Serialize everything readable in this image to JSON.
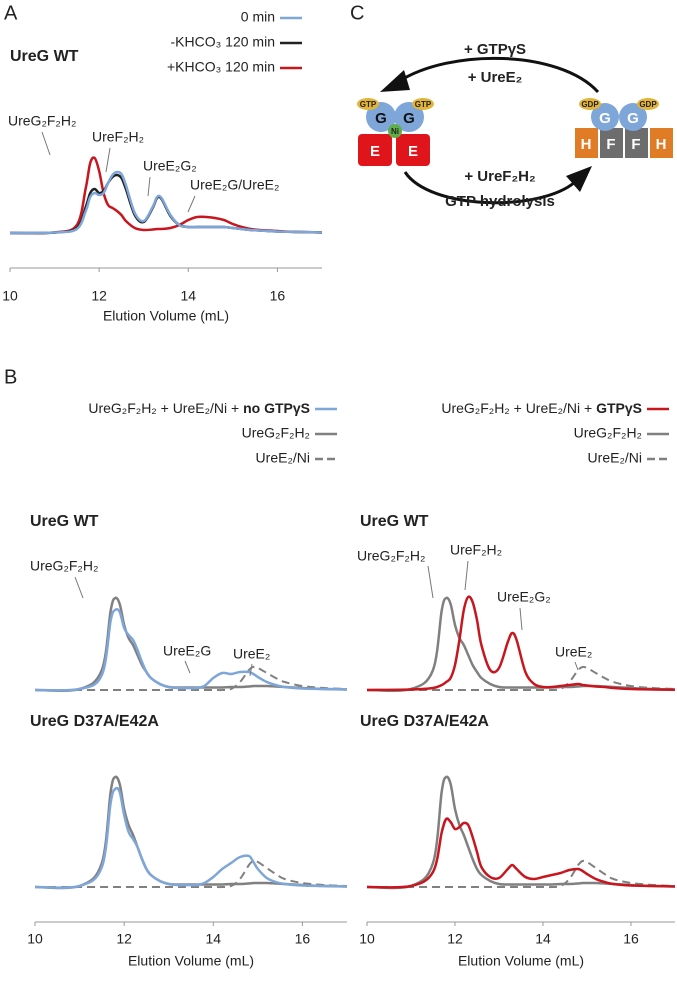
{
  "panel_labels": [
    "A",
    "B",
    "C"
  ],
  "chart_data": [
    {
      "type": "line",
      "title": "UreG WT",
      "x_label": "Elution Volume (mL)",
      "x": [
        10,
        11,
        11.5,
        11.7,
        11.8,
        11.9,
        12,
        12.1,
        12.2,
        12.3,
        12.4,
        12.5,
        12.6,
        12.8,
        13,
        13.2,
        13.3,
        13.4,
        13.6,
        13.8,
        14,
        14.2,
        14.4,
        14.6,
        14.8,
        14.9,
        15,
        15.2,
        15.4,
        15.6,
        16,
        16.5,
        17
      ],
      "xlim": [
        10,
        17
      ],
      "xticks": [
        10,
        12,
        14,
        16
      ],
      "ylim": [
        -35,
        100
      ],
      "annotations": [
        "UreG₂F₂H₂",
        "UreF₂H₂",
        "UreE₂G₂",
        "UreE₂G/UreE₂"
      ],
      "series": [
        {
          "name": "0 min",
          "color": "#7ea6d8",
          "values": [
            0,
            0.5,
            4,
            22,
            36,
            40,
            38,
            40,
            50,
            58,
            61,
            59,
            48,
            20,
            12,
            26,
            36,
            35,
            18,
            8,
            6,
            6,
            6,
            6,
            6,
            5.5,
            5,
            4,
            3,
            2.5,
            1.5,
            1,
            0.5
          ]
        },
        {
          "name": "-KHCO₃ 120 min",
          "color": "#222222",
          "values": [
            0,
            0.5,
            5,
            26,
            40,
            44,
            40,
            42,
            50,
            56,
            58,
            55,
            44,
            18,
            11,
            25,
            35,
            34,
            17,
            8,
            6,
            6,
            6,
            6,
            6,
            5.5,
            5,
            4,
            3,
            2.5,
            1.5,
            1,
            0.5
          ]
        },
        {
          "name": "+KHCO₃ 120 min",
          "color": "#c8161e",
          "values": [
            0,
            0.5,
            8,
            45,
            70,
            75,
            62,
            40,
            28,
            25,
            22,
            18,
            12,
            5,
            3,
            3.5,
            4,
            4,
            5,
            8,
            13,
            16,
            16,
            15,
            13,
            11,
            9,
            6,
            4,
            3,
            2,
            1,
            0.5
          ]
        }
      ]
    },
    {
      "type": "line",
      "title": "UreG WT",
      "x": [
        10,
        11,
        11.5,
        11.7,
        11.8,
        11.9,
        12,
        12.1,
        12.2,
        12.3,
        12.4,
        12.5,
        12.6,
        12.8,
        13,
        13.2,
        13.3,
        13.4,
        13.6,
        13.8,
        14,
        14.2,
        14.4,
        14.6,
        14.8,
        14.9,
        15,
        15.2,
        15.4,
        15.6,
        16,
        16.5,
        17
      ],
      "xlim": [
        10,
        17
      ],
      "ylim": [
        0,
        100
      ],
      "annotations": [
        "UreG₂F₂H₂",
        "UreE₂G",
        "UreE₂"
      ],
      "series": [
        {
          "name": "UreG₂F₂H₂ + UreE₂/Ni + no GTPγS",
          "color": "#7ea6d8",
          "values": [
            0,
            1,
            15,
            70,
            80,
            78,
            62,
            55,
            50,
            40,
            28,
            18,
            12,
            6,
            3,
            2,
            2,
            2,
            2,
            4,
            12,
            17,
            16,
            18,
            18,
            16,
            13,
            8,
            5,
            3,
            1.5,
            1,
            0.5
          ]
        },
        {
          "name": "UreG₂F₂H₂",
          "color": "#808080",
          "values": [
            0,
            1,
            20,
            80,
            92,
            86,
            65,
            52,
            45,
            35,
            25,
            18,
            12,
            6,
            3,
            2.5,
            2.5,
            2.5,
            2.5,
            2.5,
            2.5,
            2.5,
            3,
            3,
            3.5,
            4,
            4,
            4,
            3.5,
            3,
            2,
            1,
            0.5
          ]
        },
        {
          "name": "UreE₂/Ni",
          "color": "#808080",
          "dash": true,
          "values": [
            0,
            0,
            0,
            0,
            0,
            0,
            0,
            0,
            0,
            0,
            0,
            0,
            0,
            0,
            0,
            0,
            0,
            0,
            0,
            0,
            0,
            0,
            1,
            8,
            20,
            23,
            22,
            17,
            12,
            8,
            4,
            2,
            1
          ]
        }
      ]
    },
    {
      "type": "line",
      "title": "UreG WT",
      "x": [
        10,
        11,
        11.5,
        11.7,
        11.8,
        11.9,
        12,
        12.1,
        12.2,
        12.3,
        12.4,
        12.5,
        12.6,
        12.8,
        13,
        13.2,
        13.3,
        13.4,
        13.6,
        13.8,
        14,
        14.2,
        14.4,
        14.6,
        14.8,
        14.9,
        15,
        15.2,
        15.4,
        15.6,
        16,
        16.5,
        17
      ],
      "xlim": [
        10,
        17
      ],
      "ylim": [
        0,
        100
      ],
      "annotations": [
        "UreG₂F₂H₂",
        "UreF₂H₂",
        "UreE₂G₂",
        "UreE₂"
      ],
      "series": [
        {
          "name": "UreG₂F₂H₂ + UreE₂/Ni + GTPγS",
          "color": "#c8161e",
          "values": [
            0,
            0.5,
            2,
            5,
            8,
            12,
            25,
            50,
            80,
            93,
            88,
            70,
            45,
            20,
            22,
            48,
            57,
            50,
            18,
            6,
            3,
            3,
            4,
            5,
            6,
            5,
            4.5,
            3.5,
            3,
            2,
            1,
            0.5,
            0.3
          ]
        },
        {
          "name": "UreG₂F₂H₂",
          "color": "#808080",
          "values": [
            0,
            1,
            20,
            80,
            92,
            86,
            65,
            52,
            45,
            35,
            25,
            18,
            12,
            6,
            3,
            2.5,
            2.5,
            2.5,
            2.5,
            2.5,
            2.5,
            2.5,
            3,
            3,
            3.5,
            4,
            4,
            4,
            3.5,
            3,
            2,
            1,
            0.5
          ]
        },
        {
          "name": "UreE₂/Ni",
          "color": "#808080",
          "dash": true,
          "values": [
            0,
            0,
            0,
            0,
            0,
            0,
            0,
            0,
            0,
            0,
            0,
            0,
            0,
            0,
            0,
            0,
            0,
            0,
            0,
            0,
            0,
            0,
            1,
            8,
            20,
            23,
            22,
            17,
            12,
            8,
            4,
            2,
            1
          ]
        }
      ]
    },
    {
      "type": "line",
      "title": "UreG D37A/E42A",
      "x_label": "Elution Volume (mL)",
      "x": [
        10,
        11,
        11.5,
        11.7,
        11.8,
        11.9,
        12,
        12.1,
        12.2,
        12.3,
        12.4,
        12.5,
        12.6,
        12.8,
        13,
        13.2,
        13.3,
        13.4,
        13.6,
        13.8,
        14,
        14.2,
        14.4,
        14.6,
        14.8,
        14.9,
        15,
        15.2,
        15.4,
        15.6,
        16,
        16.5,
        17
      ],
      "xlim": [
        10,
        17
      ],
      "xticks": [
        10,
        12,
        14,
        16
      ],
      "ylim": [
        -35,
        100
      ],
      "series": [
        {
          "color": "#7ea6d8",
          "values": [
            0,
            1,
            20,
            85,
            98,
            95,
            72,
            55,
            48,
            40,
            28,
            18,
            12,
            6,
            3,
            2,
            2,
            2,
            2,
            4,
            10,
            18,
            24,
            30,
            31,
            25,
            18,
            9,
            5,
            3,
            1.5,
            1,
            0.5
          ]
        },
        {
          "color": "#808080",
          "values": [
            0,
            1,
            24,
            96,
            110,
            103,
            78,
            62,
            52,
            40,
            28,
            18,
            12,
            6,
            3,
            2.5,
            2.5,
            2.5,
            2.5,
            2.5,
            2.5,
            2.5,
            3,
            3,
            3.5,
            4,
            4,
            4,
            3.5,
            3,
            2,
            1,
            0.5
          ]
        },
        {
          "color": "#808080",
          "dash": true,
          "values": [
            0,
            0,
            0,
            0,
            0,
            0,
            0,
            0,
            0,
            0,
            0,
            0,
            0,
            0,
            0,
            0,
            0,
            0,
            0,
            0,
            0,
            0,
            1,
            8,
            22,
            26,
            25,
            19,
            13,
            8,
            4,
            2,
            1
          ]
        }
      ]
    },
    {
      "type": "line",
      "title": "UreG D37A/E42A",
      "x_label": "Elution Volume (mL)",
      "x": [
        10,
        11,
        11.5,
        11.7,
        11.8,
        11.9,
        12,
        12.1,
        12.2,
        12.3,
        12.4,
        12.5,
        12.6,
        12.8,
        13,
        13.2,
        13.3,
        13.4,
        13.6,
        13.8,
        14,
        14.2,
        14.4,
        14.6,
        14.8,
        14.9,
        15,
        15.2,
        15.4,
        15.6,
        16,
        16.5,
        17
      ],
      "xlim": [
        10,
        17
      ],
      "xticks": [
        10,
        12,
        14,
        16
      ],
      "ylim": [
        -35,
        100
      ],
      "series": [
        {
          "color": "#c8161e",
          "values": [
            0,
            1,
            15,
            55,
            68,
            65,
            58,
            60,
            64,
            62,
            50,
            35,
            20,
            10,
            9,
            18,
            22,
            18,
            10,
            8,
            10,
            12,
            14,
            17,
            18,
            16,
            13,
            8,
            5,
            3,
            1.5,
            1,
            0.5
          ]
        },
        {
          "color": "#808080",
          "values": [
            0,
            1,
            24,
            96,
            110,
            103,
            78,
            62,
            52,
            40,
            28,
            18,
            12,
            6,
            3,
            2.5,
            2.5,
            2.5,
            2.5,
            2.5,
            2.5,
            2.5,
            3,
            3,
            3.5,
            4,
            4,
            4,
            3.5,
            3,
            2,
            1,
            0.5
          ]
        },
        {
          "color": "#808080",
          "dash": true,
          "values": [
            0,
            0,
            0,
            0,
            0,
            0,
            0,
            0,
            0,
            0,
            0,
            0,
            0,
            0,
            0,
            0,
            0,
            0,
            0,
            0,
            0,
            0,
            1,
            8,
            22,
            26,
            25,
            19,
            13,
            8,
            4,
            2,
            1
          ]
        }
      ]
    }
  ],
  "diagram": {
    "top_labels": [
      "+ GTPγS",
      "+ UreE₂"
    ],
    "bottom_labels": [
      "+ UreF₂H₂",
      "GTP hydrolysis"
    ],
    "left_complex": [
      "GTP",
      "G",
      "G",
      "GTP",
      "Ni",
      "E",
      "E"
    ],
    "right_complex": [
      "GDP",
      "G",
      "G",
      "GDP",
      "H",
      "F",
      "F",
      "H"
    ]
  }
}
